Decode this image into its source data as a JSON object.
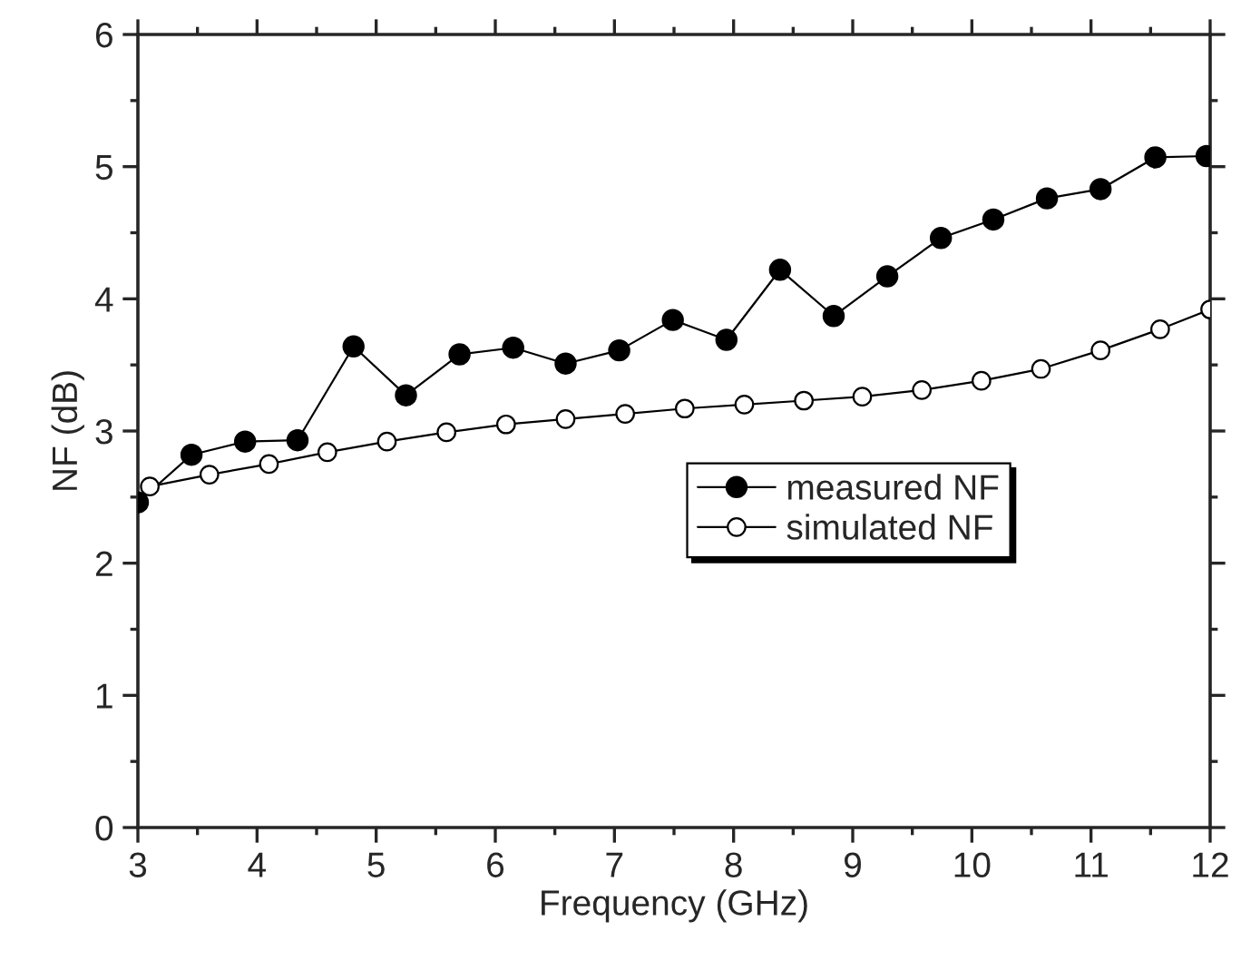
{
  "chart_data": {
    "type": "line",
    "xlabel": "Frequency (GHz)",
    "ylabel": "NF (dB)",
    "xlim": [
      3,
      12
    ],
    "xticks": [
      3,
      4,
      5,
      6,
      7,
      8,
      9,
      10,
      11,
      12
    ],
    "ylim": [
      0,
      6
    ],
    "yticks": [
      0,
      1,
      2,
      3,
      4,
      5,
      6
    ],
    "grid": false,
    "legend": "right",
    "line_style": "solid",
    "series": [
      {
        "name": "measured NF",
        "color": "#000000",
        "marker": "circle",
        "x": [
          3.0,
          3.45,
          3.9,
          4.34,
          4.81,
          5.25,
          5.7,
          6.15,
          6.59,
          7.04,
          7.49,
          7.94,
          8.39,
          8.84,
          9.29,
          9.74,
          10.18,
          10.63,
          11.08,
          11.54,
          11.97
        ],
        "values": [
          2.46,
          2.82,
          2.92,
          2.93,
          3.64,
          3.27,
          3.58,
          3.63,
          3.51,
          3.61,
          3.84,
          3.69,
          4.22,
          3.87,
          4.17,
          4.46,
          4.6,
          4.76,
          4.83,
          5.07,
          5.08
        ]
      },
      {
        "name": "simulated NF",
        "color": "#000000",
        "marker": "circle",
        "x": [
          3.1,
          3.6,
          4.1,
          4.59,
          5.09,
          5.59,
          6.09,
          6.59,
          7.09,
          7.59,
          8.09,
          8.59,
          9.08,
          9.58,
          10.08,
          10.58,
          11.08,
          11.58,
          12.0
        ],
        "values": [
          2.58,
          2.67,
          2.75,
          2.84,
          2.92,
          2.99,
          3.05,
          3.09,
          3.13,
          3.17,
          3.2,
          3.23,
          3.26,
          3.31,
          3.38,
          3.47,
          3.61,
          3.77,
          3.92
        ]
      }
    ]
  }
}
